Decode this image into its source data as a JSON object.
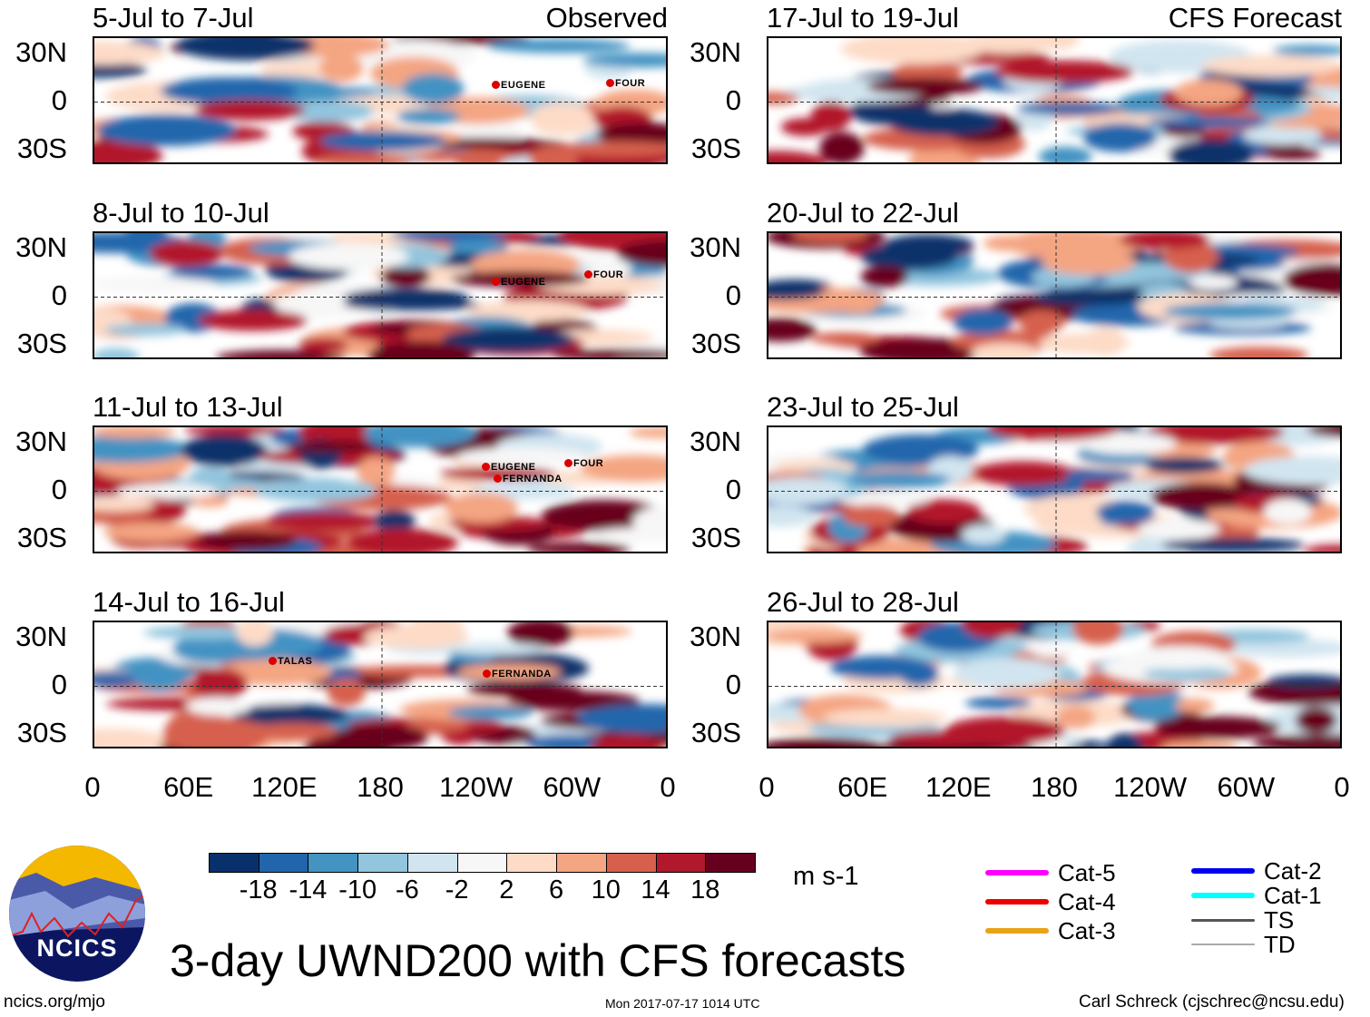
{
  "title": "3-day UWND200 with CFS forecasts",
  "footer": {
    "left": "ncics.org/mjo",
    "center": "Mon 2017-07-17 1014 UTC",
    "right": "Carl Schreck (cjschrec@ncsu.edu)"
  },
  "logo_text": "NCICS",
  "column_labels": {
    "observed": "Observed",
    "forecast": "CFS Forecast"
  },
  "lat_labels": [
    "30N",
    "0",
    "30S"
  ],
  "lon_labels": [
    "0",
    "60E",
    "120E",
    "180",
    "120W",
    "60W",
    "0"
  ],
  "panels": [
    {
      "title": "5-Jul to 7-Jul",
      "storms": [
        "EUGENE",
        "FOUR"
      ]
    },
    {
      "title": "8-Jul to 10-Jul",
      "storms": [
        "EUGENE",
        "FOUR"
      ]
    },
    {
      "title": "11-Jul to 13-Jul",
      "storms": [
        "EUGENE",
        "FERNANDA",
        "FOUR"
      ]
    },
    {
      "title": "14-Jul to 16-Jul",
      "storms": [
        "TALAS",
        "FERNANDA"
      ]
    },
    {
      "title": "17-Jul to 19-Jul",
      "storms": []
    },
    {
      "title": "20-Jul to 22-Jul",
      "storms": []
    },
    {
      "title": "23-Jul to 25-Jul",
      "storms": []
    },
    {
      "title": "26-Jul to 28-Jul",
      "storms": []
    }
  ],
  "colorbar": {
    "units": "m s-1",
    "labels": [
      "-18",
      "-14",
      "-10",
      "-6",
      "-2",
      "2",
      "6",
      "10",
      "14",
      "18"
    ],
    "colors": [
      "#08306b",
      "#2166ac",
      "#4393c3",
      "#92c5de",
      "#d1e5f0",
      "#f7f7f7",
      "#fddbc7",
      "#f4a582",
      "#d6604d",
      "#b2182b",
      "#67001f"
    ]
  },
  "legend": [
    {
      "label": "Cat-5",
      "color": "#ff00ff"
    },
    {
      "label": "Cat-4",
      "color": "#ee0000"
    },
    {
      "label": "Cat-3",
      "color": "#e8a317"
    },
    {
      "label": "Cat-2",
      "color": "#0000ee"
    },
    {
      "label": "Cat-1",
      "color": "#00ffff"
    },
    {
      "label": "TS",
      "color": "#555555"
    },
    {
      "label": "TD",
      "color": "#aaaaaa"
    }
  ]
}
